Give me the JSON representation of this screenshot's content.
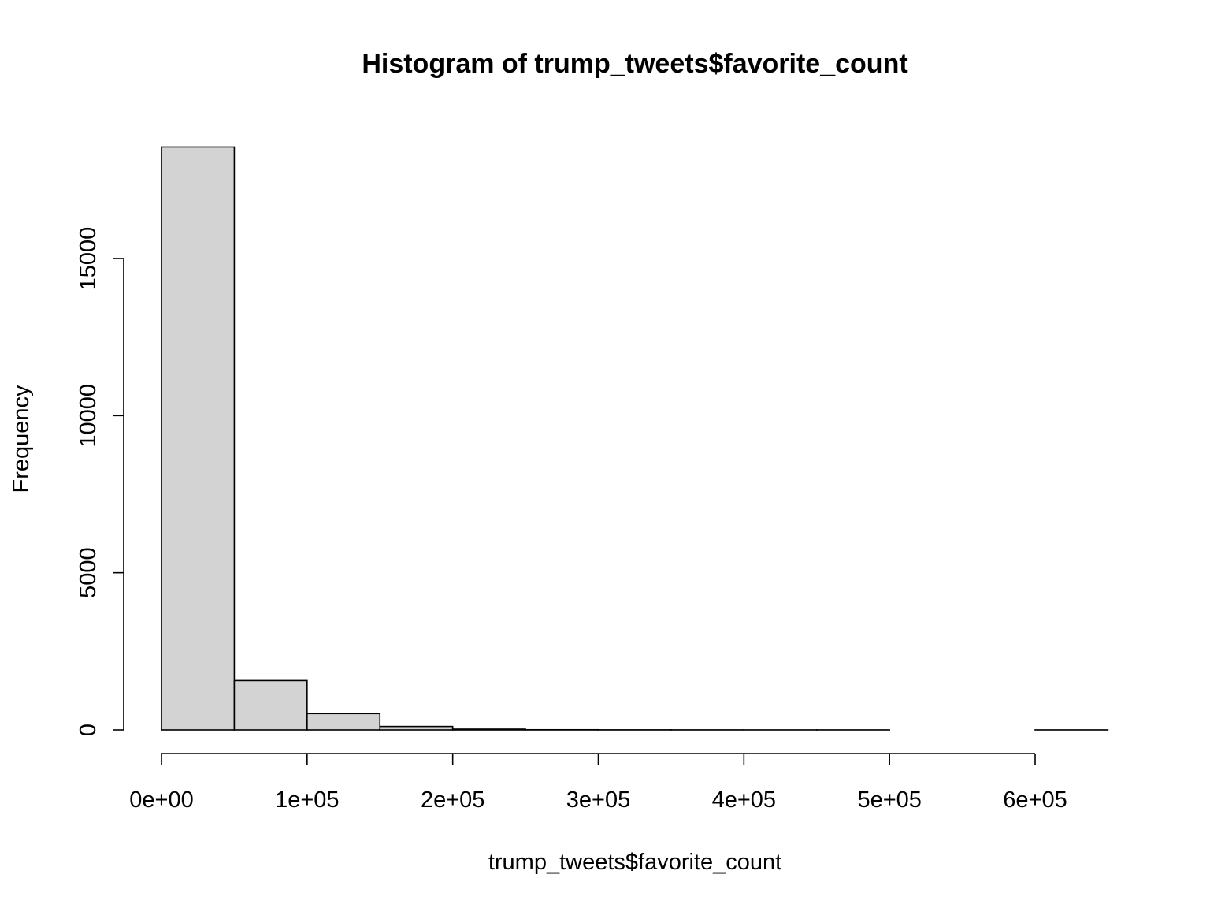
{
  "chart_data": {
    "type": "bar",
    "title": "Histogram of trump_tweets$favorite_count",
    "xlabel": "trump_tweets$favorite_count",
    "ylabel": "Frequency",
    "bar_color": "#d3d3d3",
    "border_color": "#000000",
    "xlim": [
      0,
      650000
    ],
    "ylim": [
      0,
      18500
    ],
    "x_ticks": [
      0,
      100000,
      200000,
      300000,
      400000,
      500000,
      600000
    ],
    "x_tick_labels": [
      "0e+00",
      "1e+05",
      "2e+05",
      "3e+05",
      "4e+05",
      "5e+05",
      "6e+05"
    ],
    "y_ticks": [
      0,
      5000,
      10000,
      15000
    ],
    "y_tick_labels": [
      "0",
      "5000",
      "10000",
      "15000"
    ],
    "bins": [
      {
        "x0": 0,
        "x1": 50000,
        "count": 18550
      },
      {
        "x0": 50000,
        "x1": 100000,
        "count": 1570
      },
      {
        "x0": 100000,
        "x1": 150000,
        "count": 520
      },
      {
        "x0": 150000,
        "x1": 200000,
        "count": 110
      },
      {
        "x0": 200000,
        "x1": 250000,
        "count": 25
      },
      {
        "x0": 250000,
        "x1": 300000,
        "count": 6
      },
      {
        "x0": 300000,
        "x1": 350000,
        "count": 3
      },
      {
        "x0": 350000,
        "x1": 400000,
        "count": 2
      },
      {
        "x0": 400000,
        "x1": 450000,
        "count": 1
      },
      {
        "x0": 450000,
        "x1": 500000,
        "count": 1
      },
      {
        "x0": 500000,
        "x1": 550000,
        "count": 0
      },
      {
        "x0": 550000,
        "x1": 600000,
        "count": 0
      },
      {
        "x0": 600000,
        "x1": 650000,
        "count": 1
      }
    ]
  }
}
